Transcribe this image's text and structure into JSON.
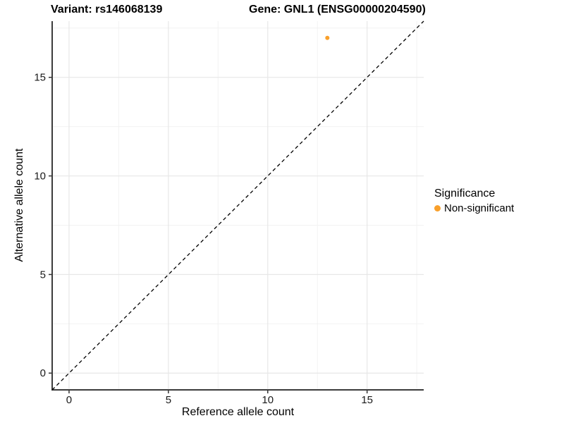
{
  "titles": {
    "variant": "Variant: rs146068139",
    "gene": "Gene: GNL1 (ENSG00000204590)"
  },
  "legend": {
    "title": "Significance",
    "position": "right",
    "items": [
      {
        "label": "Non-significant",
        "color": "#F9A02B",
        "marker": "circle"
      }
    ]
  },
  "chart_data": {
    "type": "scatter",
    "title_left": "Variant: rs146068139",
    "title_right": "Gene: GNL1 (ENSG00000204590)",
    "xlabel": "Reference allele count",
    "ylabel": "Alternative allele count",
    "xlim": [
      -0.85,
      17.85
    ],
    "ylim": [
      -0.85,
      17.85
    ],
    "x_ticks": [
      0,
      5,
      10,
      15
    ],
    "y_ticks": [
      0,
      5,
      10,
      15
    ],
    "x_minor_ticks": [
      2.5,
      7.5,
      12.5,
      17.5
    ],
    "y_minor_ticks": [
      2.5,
      7.5,
      12.5,
      17.5
    ],
    "grid": true,
    "series": [
      {
        "name": "Non-significant",
        "color": "#F9A02B",
        "points": [
          {
            "x": 13,
            "y": 17
          }
        ]
      }
    ],
    "reference_line": {
      "kind": "identity",
      "slope": 1,
      "intercept": 0,
      "linetype": "dashed",
      "color": "#000000"
    },
    "colors": {
      "axis_line": "#3C3C3C",
      "tick_mark": "#333333",
      "tick_label": "#1A1A1A",
      "grid_major": "#E7E7E7",
      "grid_minor": "#F2F2F2",
      "background": "#FFFFFF"
    }
  }
}
